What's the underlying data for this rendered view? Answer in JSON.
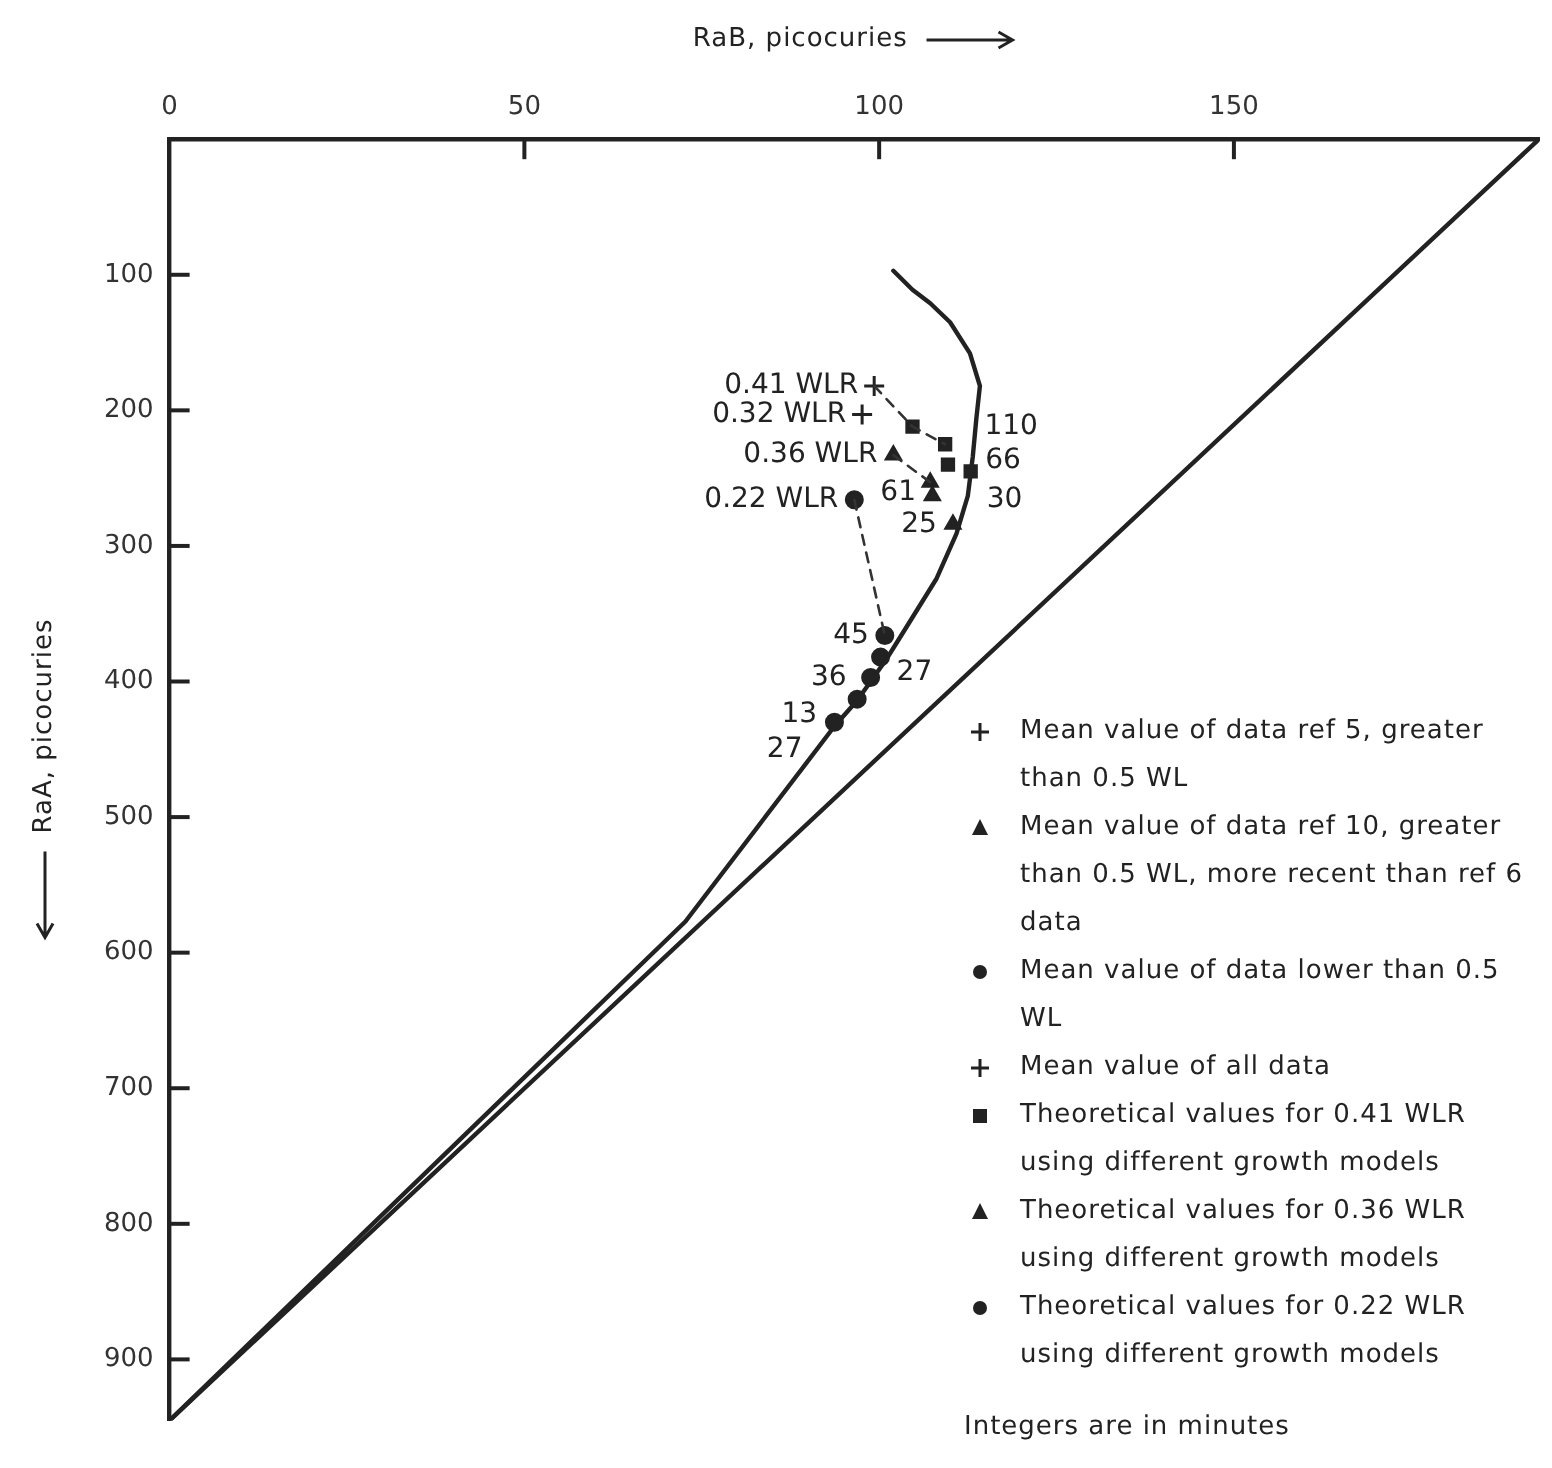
{
  "chart_data": {
    "type": "scatter",
    "xlabel": "RaB, picocuries",
    "ylabel": "RaA, picocuries",
    "xlim": [
      0,
      193
    ],
    "xticks": [
      0,
      50,
      100,
      150
    ],
    "ylim": [
      945,
      0
    ],
    "yticks": [
      100,
      200,
      300,
      400,
      500,
      600,
      700,
      800,
      900
    ],
    "grid": false,
    "legend": "bottom right",
    "series": [
      {
        "type": "line",
        "color": "#222222",
        "marker": "none",
        "line_style": "solid",
        "x": [
          102,
          104.7,
          107.2,
          110,
          112.8,
          114.2,
          113.7,
          113.2,
          112.5,
          110.9,
          108.1,
          103,
          101.1,
          96.9,
          93.7,
          72.7,
          0
        ],
        "values": [
          97,
          111,
          121,
          135,
          158,
          182,
          206,
          234,
          263,
          291,
          324,
          367,
          383,
          414,
          433,
          577,
          945
        ]
      },
      {
        "type": "line",
        "color": "#222222",
        "marker": "none",
        "line_style": "solid",
        "x": [
          0,
          193
        ],
        "values": [
          945,
          0
        ]
      },
      {
        "type": "line",
        "color": "#333333",
        "marker": "none",
        "line_style": "dashed",
        "x": [
          99.3,
          104.7,
          109.3
        ],
        "values": [
          182,
          212,
          225
        ]
      },
      {
        "type": "line",
        "color": "#333333",
        "marker": "none",
        "line_style": "dashed",
        "x": [
          102,
          107.2
        ],
        "values": [
          233,
          253
        ]
      },
      {
        "type": "line",
        "color": "#333333",
        "marker": "none",
        "line_style": "dashed",
        "x": [
          96.5,
          100.8
        ],
        "values": [
          266,
          366
        ]
      },
      {
        "name": "Mean value of data ref 5, greater than 0.5 WL",
        "marker": "cross",
        "color": "#222222",
        "x": [
          99.3
        ],
        "values": [
          182
        ]
      },
      {
        "name": "Mean value of data ref 10, greater than 0.5 WL, more recent than ref 6 data",
        "marker": "triangle",
        "color": "#222222",
        "x": [
          102
        ],
        "values": [
          233
        ]
      },
      {
        "name": "Mean value of data lower than 0.5 WL",
        "marker": "circle",
        "color": "#222222",
        "x": [
          96.5
        ],
        "values": [
          266
        ]
      },
      {
        "name": "Mean value of all data",
        "marker": "cross",
        "color": "#222222",
        "x": [
          97.6
        ],
        "values": [
          203
        ]
      },
      {
        "name": "Theoretical values for 0.41 WLR using different growth models",
        "marker": "square",
        "color": "#222222",
        "x": [
          104.7,
          109.3,
          109.7,
          112.9
        ],
        "values": [
          212,
          225,
          240,
          245
        ]
      },
      {
        "name": "Theoretical values for 0.36 WLR using different growth models",
        "marker": "triangle",
        "color": "#222222",
        "x": [
          107.2,
          107.5,
          110.4
        ],
        "values": [
          253,
          263,
          284
        ]
      },
      {
        "name": "Theoretical values for 0.22 WLR using different growth models",
        "marker": "circle",
        "color": "#222222",
        "x": [
          100.8,
          100.2,
          98.8,
          96.9,
          93.7
        ],
        "values": [
          366,
          382,
          397,
          413,
          430
        ]
      }
    ],
    "annotations": [
      {
        "text": "0.41 WLR",
        "x": 99.3,
        "y": 182
      },
      {
        "text": "0.32 WLR",
        "x": 97.6,
        "y": 203
      },
      {
        "text": "0.36 WLR",
        "x": 102,
        "y": 233
      },
      {
        "text": "0.22 WLR",
        "x": 96.5,
        "y": 266
      },
      {
        "text": "110",
        "x": 104.7,
        "y": 212
      },
      {
        "text": "66",
        "x": 109.3,
        "y": 225
      },
      {
        "text": "61",
        "x": 109.7,
        "y": 240
      },
      {
        "text": "30",
        "x": 112.9,
        "y": 245
      },
      {
        "text": "25",
        "x": 110.4,
        "y": 284
      },
      {
        "text": "45",
        "x": 100.8,
        "y": 366
      },
      {
        "text": "27",
        "x": 100.2,
        "y": 382
      },
      {
        "text": "36",
        "x": 98.8,
        "y": 397
      },
      {
        "text": "13",
        "x": 96.9,
        "y": 413
      },
      {
        "text": "27",
        "x": 93.7,
        "y": 430
      },
      "Integers are in minutes"
    ]
  }
}
